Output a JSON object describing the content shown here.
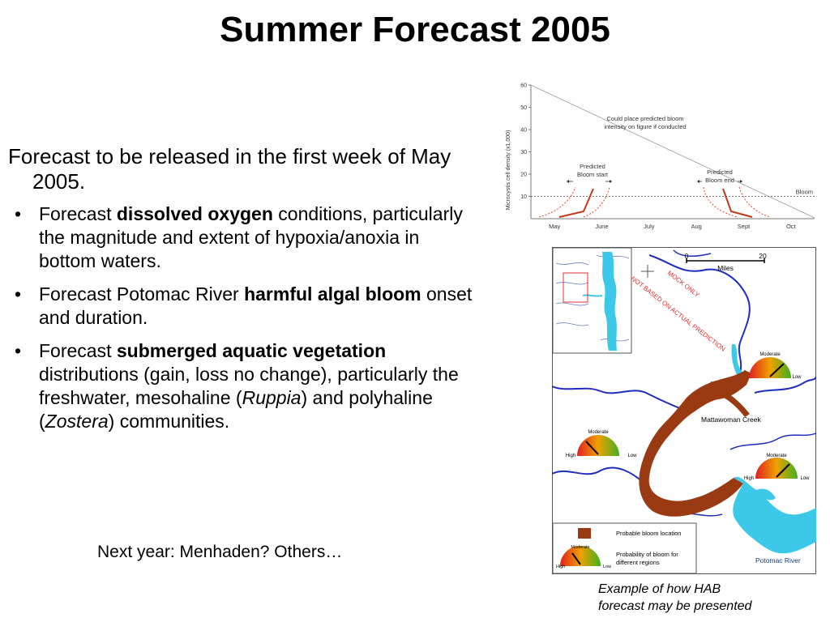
{
  "slide": {
    "title": "Summer Forecast 2005",
    "intro": "Forecast to be released in the first week of May 2005.",
    "bullets": [
      {
        "pre": "Forecast ",
        "bold": "dissolved oxygen",
        "post": " conditions, particularly the magnitude and extent of hypoxia/anoxia in bottom waters."
      },
      {
        "pre": "Forecast Potomac River ",
        "bold": "harmful algal bloom",
        "post": " onset and duration."
      },
      {
        "pre": "Forecast ",
        "bold": "submerged aquatic vegetation",
        "mid1": " distributions (gain, loss no change), particularly the freshwater, mesohaline (",
        "ital1": "Ruppia",
        "mid2": ") and polyhaline (",
        "ital2": "Zostera",
        "post": ") communities."
      }
    ],
    "bullet_char": "•",
    "next_year": "Next year: Menhaden? Others…",
    "caption_line1": "Example of how HAB",
    "caption_line2": "forecast may be presented"
  },
  "chart_data": {
    "type": "line",
    "title": "",
    "xlabel": "",
    "ylabel": "Microcystis cell density (x1,000)",
    "categories": [
      "May",
      "June",
      "July",
      "Aug",
      "Sept",
      "Oct"
    ],
    "yticks": [
      "10",
      "20",
      "30",
      "40",
      "50",
      "60"
    ],
    "ylim": [
      0,
      60
    ],
    "threshold": {
      "value": 10,
      "label": "Bloom"
    },
    "annotations": {
      "intensity": [
        "Could place predicted bloom",
        "intensity on figure if conducted"
      ],
      "start": [
        "Predicted",
        "Bloom start"
      ],
      "end": [
        "Predicted",
        "Bloom end"
      ]
    }
  },
  "map": {
    "scale_start": "0",
    "scale_end": "20",
    "scale_unit": "Miles",
    "watermark1": "MOCK ONLY",
    "watermark2": "NOT BASED ON ACTUAL PREDICTION",
    "creek_label": "Mattawoman Creek",
    "river_label": "Potomac River",
    "gauge_labels": {
      "moderate": "Moderate",
      "high": "High",
      "low": "Low"
    },
    "legend": {
      "bloom_location": "Probable bloom location",
      "probability1": "Probability of bloom for",
      "probability2": "different regions"
    },
    "colors": {
      "bloom": "#9a3a12",
      "water": "#3cc8e8",
      "river": "#1f2dbf"
    }
  }
}
